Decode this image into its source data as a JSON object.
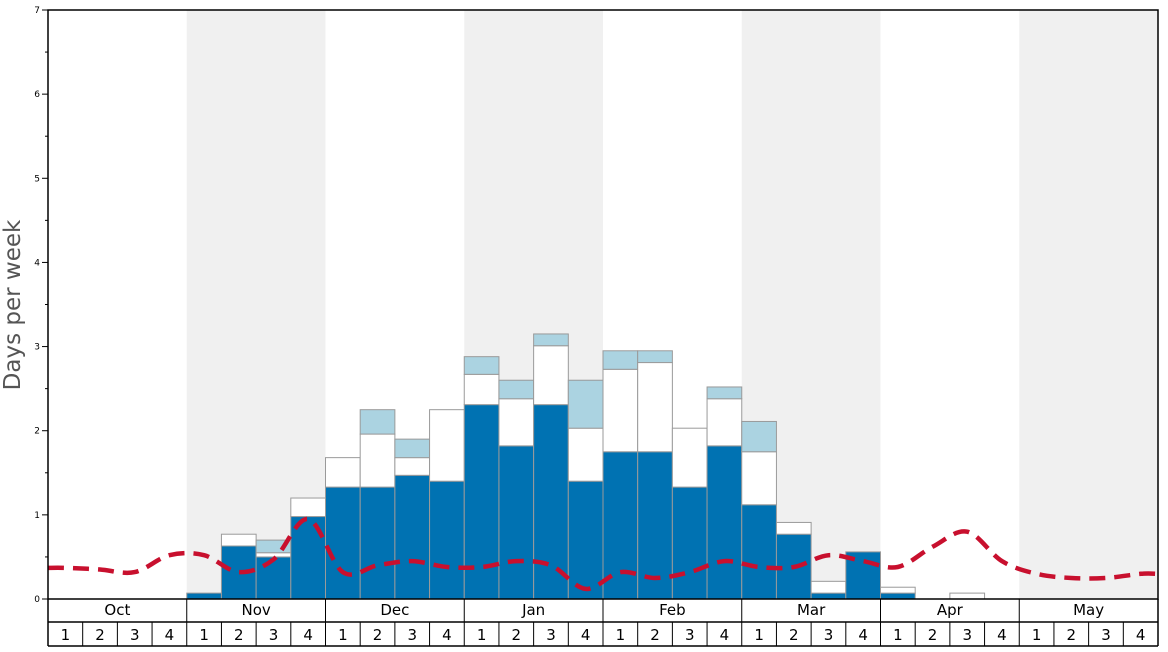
{
  "chart_data": {
    "type": "bar",
    "ylabel": "Days per week",
    "ylim": [
      0,
      7
    ],
    "y_ticks": [
      0,
      1,
      2,
      3,
      4,
      5,
      6,
      7
    ],
    "grid": false,
    "months": [
      "Oct",
      "Nov",
      "Dec",
      "Jan",
      "Feb",
      "Mar",
      "Apr",
      "May"
    ],
    "weeks_per_month": [
      "1",
      "2",
      "3",
      "4"
    ],
    "colors": {
      "dark_blue": "#0072b2",
      "white": "#ffffff",
      "light_blue": "#abd3e1",
      "dashed_line": "#c8102e",
      "month_band_shade": "#f0f0f0"
    },
    "series": [
      {
        "key": "dark_blue",
        "values": [
          0,
          0,
          0,
          0,
          0.07,
          0.63,
          0.5,
          0.98,
          1.33,
          1.33,
          1.47,
          1.4,
          2.31,
          1.82,
          2.31,
          1.4,
          1.75,
          1.75,
          1.33,
          1.82,
          1.12,
          0.77,
          0.07,
          0.56,
          0.07,
          0,
          0,
          0,
          0,
          0,
          0,
          0
        ]
      },
      {
        "key": "white",
        "values": [
          0,
          0,
          0,
          0,
          0,
          0.14,
          0.05,
          0.22,
          0.35,
          0.63,
          0.21,
          0.85,
          0.36,
          0.56,
          0.7,
          0.63,
          0.98,
          1.06,
          0.7,
          0.56,
          0.63,
          0.14,
          0.14,
          0,
          0.07,
          0,
          0.07,
          0,
          0,
          0,
          0,
          0
        ]
      },
      {
        "key": "light_blue",
        "values": [
          0,
          0,
          0,
          0,
          0,
          0,
          0.15,
          0,
          0,
          0.29,
          0.22,
          0,
          0.21,
          0.22,
          0.14,
          0.57,
          0.22,
          0.14,
          0,
          0.14,
          0.36,
          0,
          0,
          0,
          0,
          0,
          0,
          0,
          0,
          0,
          0,
          0
        ]
      }
    ],
    "line": {
      "key": "dashed_line",
      "values": [
        0.37,
        0.35,
        0.32,
        0.52,
        0.52,
        0.32,
        0.47,
        0.95,
        0.32,
        0.4,
        0.45,
        0.38,
        0.38,
        0.45,
        0.4,
        0.12,
        0.32,
        0.25,
        0.32,
        0.45,
        0.38,
        0.38,
        0.52,
        0.45,
        0.38,
        0.62,
        0.8,
        0.45,
        0.3,
        0.25,
        0.25,
        0.3
      ]
    }
  }
}
